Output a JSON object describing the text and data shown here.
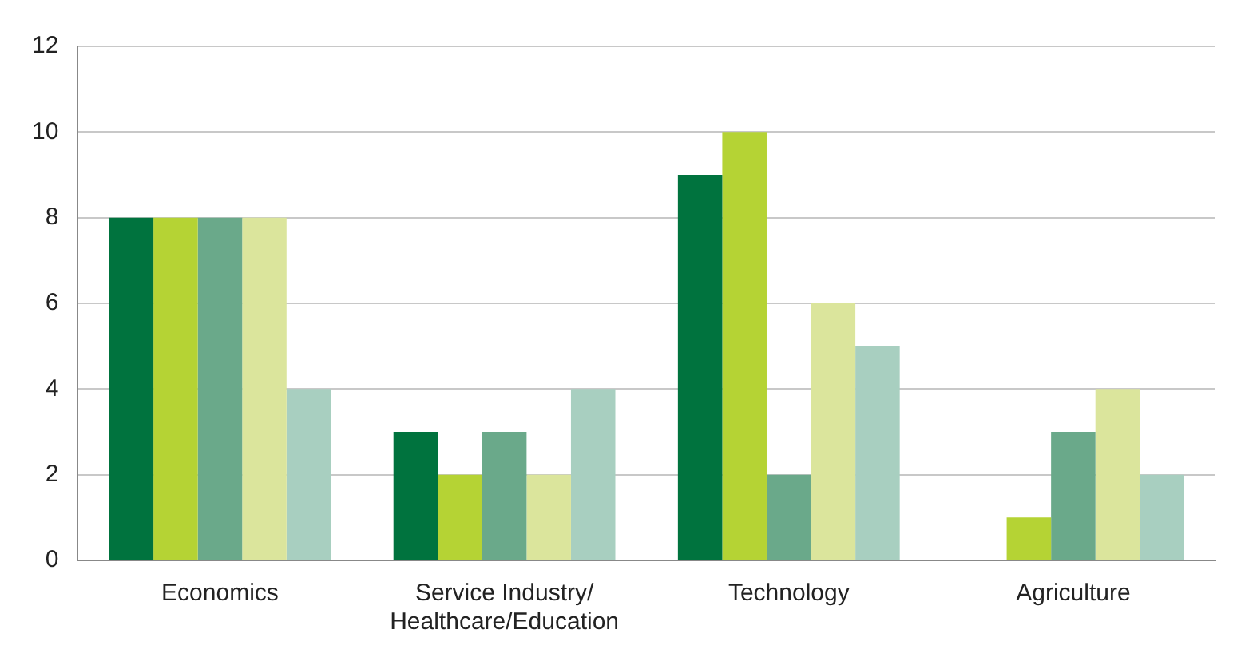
{
  "chart_data": {
    "type": "bar",
    "categories": [
      "Economics",
      "Service Industry/\nHealthcare/Education",
      "Technology",
      "Agriculture"
    ],
    "series": [
      {
        "color": "#00733e",
        "values": [
          8,
          3,
          9,
          0
        ]
      },
      {
        "color": "#b5d334",
        "values": [
          8,
          2,
          10,
          1
        ]
      },
      {
        "color": "#6aa98a",
        "values": [
          8,
          3,
          2,
          3
        ]
      },
      {
        "color": "#dbe59c",
        "values": [
          8,
          2,
          6,
          4
        ]
      },
      {
        "color": "#a8cfc0",
        "values": [
          4,
          4,
          5,
          2
        ]
      }
    ],
    "ylim": [
      0,
      12
    ],
    "yticks": [
      0,
      2,
      4,
      6,
      8,
      10,
      12
    ],
    "grid": "y",
    "legend": false
  }
}
